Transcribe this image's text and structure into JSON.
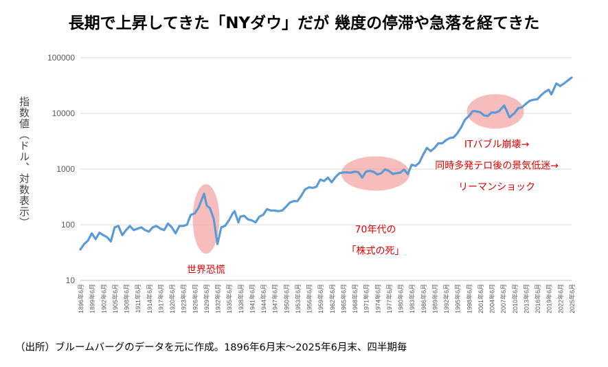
{
  "title": "長期で上昇してきた「NYダウ」だが 幾度の停滞や急落を経てきた",
  "source_note": "（出所）ブルームバーグのデータを元に作成。1896年6月末～2025年6月末、四半期毎",
  "chart_data": {
    "type": "line",
    "title": "長期で上昇してきた「NYダウ」だが 幾度の停滞や急落を経てきた",
    "ylabel": "指数値（ドル、対数表示）",
    "xlabel": "",
    "yscale": "log",
    "ylim": [
      10,
      100000
    ],
    "yticks": [
      10,
      100,
      1000,
      10000,
      100000
    ],
    "ytick_labels": [
      "10",
      "100",
      "1000",
      "10000",
      "100000"
    ],
    "xlim": [
      1896.5,
      2025.5
    ],
    "xtick_labels": [
      "1896年6月",
      "1899年6月",
      "1902年6月",
      "1905年6月",
      "1908年6月",
      "1911年6月",
      "1914年6月",
      "1917年6月",
      "1920年6月",
      "1923年6月",
      "1926年6月",
      "1929年6月",
      "1932年6月",
      "1935年6月",
      "1938年6月",
      "1941年6月",
      "1944年6月",
      "1947年6月",
      "1950年6月",
      "1953年6月",
      "1956年6月",
      "1959年6月",
      "1962年6月",
      "1965年6月",
      "1968年6月",
      "1971年6月",
      "1974年6月",
      "1977年6月",
      "1980年6月",
      "1983年6月",
      "1986年6月",
      "1989年6月",
      "1992年6月",
      "1995年6月",
      "1998年6月",
      "2001年6月",
      "2004年6月",
      "2007年6月",
      "2010年6月",
      "2013年6月",
      "2016年6月",
      "2019年6月",
      "2022年6月",
      "2025年6月"
    ],
    "grid": true,
    "legend": "none",
    "series": [
      {
        "color": "#5b9bd5",
        "x": [
          1896.5,
          1897.5,
          1898.5,
          1899.5,
          1900.5,
          1901.5,
          1902.5,
          1903.5,
          1904.5,
          1905.5,
          1906.5,
          1907.5,
          1908.5,
          1909.5,
          1910.5,
          1911.5,
          1912.5,
          1913.5,
          1914.5,
          1915.5,
          1916.5,
          1917.5,
          1918.5,
          1919.5,
          1920.5,
          1921.5,
          1922.5,
          1923.5,
          1924.5,
          1925.5,
          1926.5,
          1927.5,
          1928.5,
          1929.0,
          1929.7,
          1930.5,
          1931.5,
          1932.5,
          1933.5,
          1934.5,
          1935.5,
          1936.5,
          1937.0,
          1938.0,
          1938.5,
          1939.5,
          1940.5,
          1941.5,
          1942.5,
          1943.5,
          1944.5,
          1945.5,
          1946.5,
          1947.5,
          1948.5,
          1949.5,
          1950.5,
          1951.5,
          1952.5,
          1953.5,
          1954.5,
          1955.5,
          1956.5,
          1957.5,
          1958.5,
          1959.5,
          1960.5,
          1961.5,
          1962.5,
          1963.5,
          1964.5,
          1965.5,
          1966.5,
          1967.5,
          1968.5,
          1969.5,
          1970.5,
          1971.5,
          1972.5,
          1973.5,
          1974.5,
          1975.5,
          1976.5,
          1977.5,
          1978.5,
          1979.5,
          1980.5,
          1981.5,
          1982.5,
          1983.5,
          1984.5,
          1985.5,
          1986.5,
          1987.5,
          1988.5,
          1989.5,
          1990.5,
          1991.5,
          1992.5,
          1993.5,
          1994.5,
          1995.5,
          1996.5,
          1997.5,
          1998.5,
          1999.5,
          2000.0,
          2001.5,
          2002.5,
          2003.5,
          2004.5,
          2005.5,
          2006.5,
          2007.8,
          2009.2,
          2010.5,
          2011.5,
          2012.5,
          2013.5,
          2014.5,
          2015.5,
          2016.5,
          2017.5,
          2018.5,
          2019.5,
          2020.2,
          2021.5,
          2022.5,
          2023.5,
          2024.5,
          2025.5
        ],
        "values": [
          36,
          45,
          52,
          70,
          55,
          72,
          65,
          60,
          50,
          90,
          95,
          65,
          80,
          95,
          80,
          85,
          90,
          80,
          75,
          90,
          95,
          85,
          80,
          105,
          90,
          70,
          95,
          95,
          100,
          150,
          160,
          200,
          300,
          360,
          220,
          200,
          130,
          45,
          90,
          95,
          120,
          160,
          175,
          110,
          140,
          145,
          125,
          120,
          110,
          140,
          150,
          190,
          180,
          180,
          175,
          180,
          210,
          250,
          265,
          265,
          330,
          430,
          470,
          460,
          480,
          650,
          610,
          700,
          580,
          720,
          840,
          870,
          870,
          860,
          900,
          880,
          700,
          900,
          930,
          890,
          800,
          840,
          990,
          930,
          820,
          840,
          860,
          980,
          810,
          1200,
          1140,
          1300,
          1800,
          2400,
          2100,
          2400,
          2900,
          2900,
          3300,
          3600,
          3700,
          4400,
          5650,
          7700,
          8900,
          10900,
          11000,
          10500,
          9200,
          9000,
          10400,
          10300,
          11000,
          13900,
          8500,
          10100,
          12400,
          12900,
          14900,
          16800,
          17600,
          17900,
          21300,
          24300,
          26600,
          22000,
          34500,
          31000,
          34400,
          39000,
          44000
        ]
      }
    ],
    "annotations": [
      {
        "label": "世界恐慌",
        "x_range": [
          1926,
          1933
        ]
      },
      {
        "label": "70年代の",
        "x_range": [
          1965,
          1983
        ]
      },
      {
        "label": "「株式の死」",
        "x_range": [
          1965,
          1983
        ]
      },
      {
        "label": "ITバブル崩壊→",
        "x_range": [
          1998,
          2013
        ]
      },
      {
        "label": "同時多発テロ後の景気低迷→",
        "x_range": [
          1998,
          2013
        ]
      },
      {
        "label": "リーマンショック",
        "x_range": [
          1998,
          2013
        ]
      }
    ]
  }
}
